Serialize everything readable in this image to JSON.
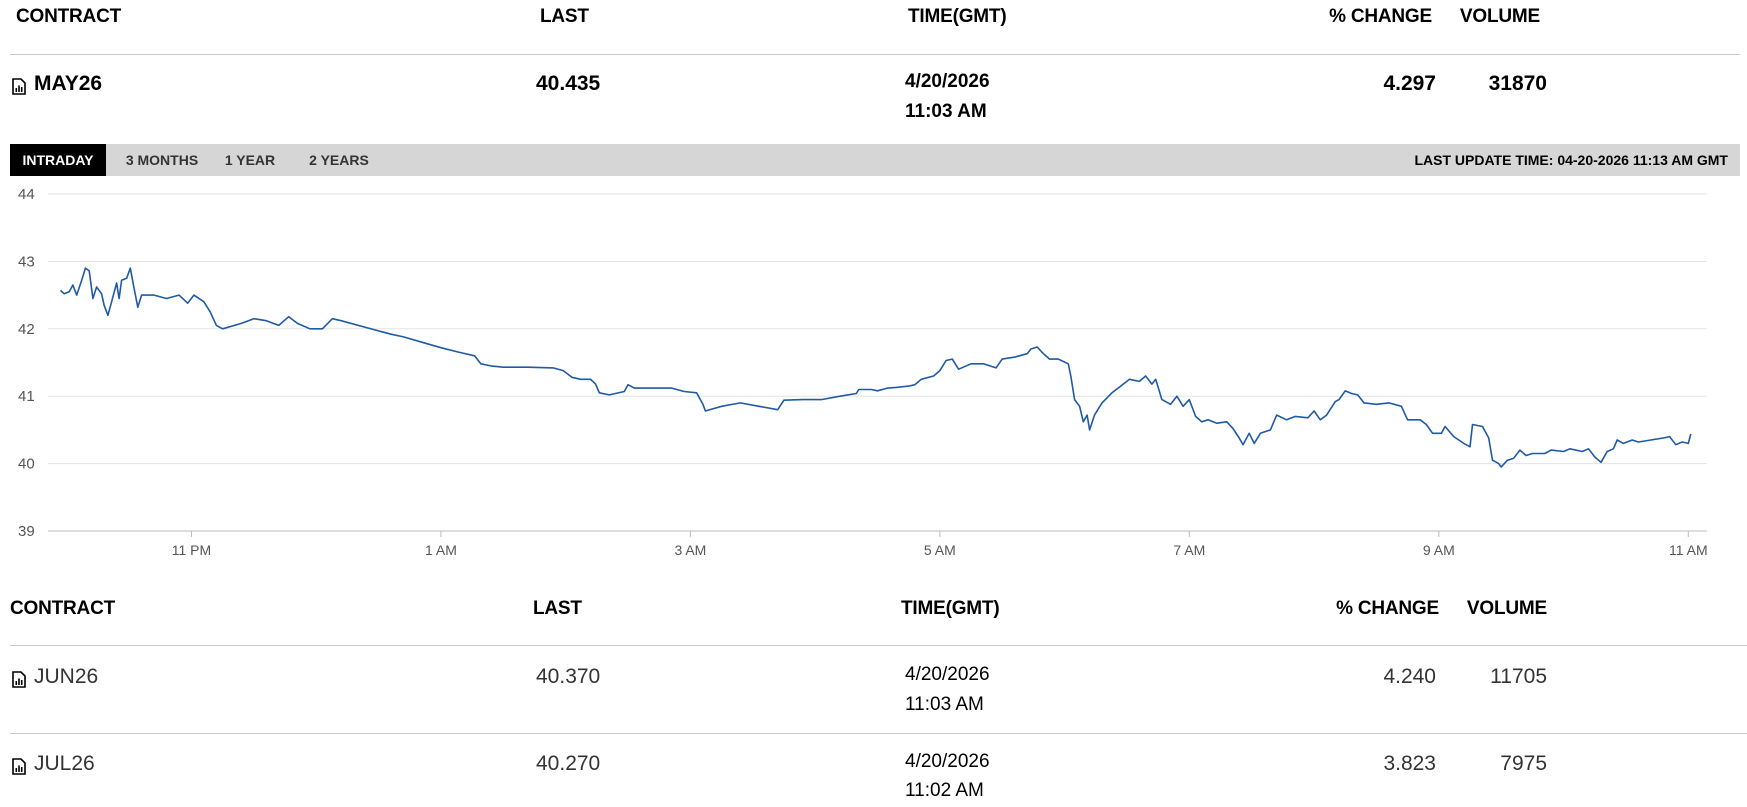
{
  "table_headers": {
    "contract": "CONTRACT",
    "last": "LAST",
    "time": "TIME(GMT)",
    "change": "% CHANGE",
    "volume": "VOLUME"
  },
  "main_contract": {
    "name": "MAY26",
    "last": "40.435",
    "date": "4/20/2026",
    "time": "11:03 AM",
    "change": "4.297",
    "volume": "31870"
  },
  "tabs": [
    {
      "label": "INTRADAY",
      "active": true
    },
    {
      "label": "3 MONTHS",
      "active": false
    },
    {
      "label": "1 YEAR",
      "active": false
    },
    {
      "label": "2 YEARS",
      "active": false
    }
  ],
  "last_update": "LAST UPDATE TIME: 04-20-2026 11:13 AM GMT",
  "other_contracts": [
    {
      "name": "JUN26",
      "last": "40.370",
      "date": "4/20/2026",
      "time": "11:03 AM",
      "change": "4.240",
      "volume": "11705"
    },
    {
      "name": "JUL26",
      "last": "40.270",
      "date": "4/20/2026",
      "time": "11:02 AM",
      "change": "3.823",
      "volume": "7975"
    }
  ],
  "icons": {
    "contract_row": "chart-document-icon"
  },
  "colors": {
    "line": "#1f5aa6",
    "tab_active_bg": "#000000",
    "tab_bar_bg": "#d6d6d6",
    "grid": "#e3e3e3"
  },
  "chart_data": {
    "type": "line",
    "title": "",
    "xlabel": "",
    "ylabel": "",
    "ylim": [
      39,
      44
    ],
    "y_ticks": [
      44,
      43,
      42,
      41,
      40,
      39
    ],
    "x_ticks": [
      "11 PM",
      "1 AM",
      "3 AM",
      "5 AM",
      "7 AM",
      "9 AM",
      "11 AM"
    ],
    "x_range_hours": [
      -1.15,
      12.15
    ],
    "grid": true,
    "series": [
      {
        "points": [
          [
            -1.05,
            42.57
          ],
          [
            -1.02,
            42.52
          ],
          [
            -0.98,
            42.55
          ],
          [
            -0.95,
            42.65
          ],
          [
            -0.92,
            42.5
          ],
          [
            -0.88,
            42.72
          ],
          [
            -0.85,
            42.9
          ],
          [
            -0.82,
            42.86
          ],
          [
            -0.79,
            42.45
          ],
          [
            -0.76,
            42.62
          ],
          [
            -0.72,
            42.52
          ],
          [
            -0.7,
            42.35
          ],
          [
            -0.67,
            42.2
          ],
          [
            -0.64,
            42.4
          ],
          [
            -0.6,
            42.68
          ],
          [
            -0.58,
            42.45
          ],
          [
            -0.56,
            42.72
          ],
          [
            -0.52,
            42.75
          ],
          [
            -0.49,
            42.9
          ],
          [
            -0.46,
            42.6
          ],
          [
            -0.43,
            42.32
          ],
          [
            -0.4,
            42.5
          ],
          [
            -0.3,
            42.5
          ],
          [
            -0.2,
            42.45
          ],
          [
            -0.1,
            42.5
          ],
          [
            -0.03,
            42.38
          ],
          [
            0.02,
            42.5
          ],
          [
            0.1,
            42.4
          ],
          [
            0.15,
            42.25
          ],
          [
            0.2,
            42.05
          ],
          [
            0.25,
            42.0
          ],
          [
            0.4,
            42.08
          ],
          [
            0.5,
            42.15
          ],
          [
            0.6,
            42.12
          ],
          [
            0.7,
            42.05
          ],
          [
            0.78,
            42.18
          ],
          [
            0.85,
            42.08
          ],
          [
            0.95,
            42.0
          ],
          [
            1.05,
            42.0
          ],
          [
            1.13,
            42.15
          ],
          [
            1.2,
            42.12
          ],
          [
            1.4,
            42.02
          ],
          [
            1.6,
            41.92
          ],
          [
            1.7,
            41.88
          ],
          [
            1.85,
            41.8
          ],
          [
            2.0,
            41.72
          ],
          [
            2.15,
            41.65
          ],
          [
            2.27,
            41.6
          ],
          [
            2.32,
            41.48
          ],
          [
            2.4,
            41.45
          ],
          [
            2.5,
            41.43
          ],
          [
            2.7,
            41.43
          ],
          [
            2.9,
            41.42
          ],
          [
            2.98,
            41.38
          ],
          [
            3.05,
            41.28
          ],
          [
            3.12,
            41.25
          ],
          [
            3.2,
            41.25
          ],
          [
            3.24,
            41.18
          ],
          [
            3.27,
            41.05
          ],
          [
            3.35,
            41.02
          ],
          [
            3.47,
            41.07
          ],
          [
            3.5,
            41.17
          ],
          [
            3.55,
            41.12
          ],
          [
            3.7,
            41.12
          ],
          [
            3.85,
            41.12
          ],
          [
            3.95,
            41.07
          ],
          [
            4.05,
            41.05
          ],
          [
            4.1,
            40.88
          ],
          [
            4.12,
            40.78
          ],
          [
            4.25,
            40.85
          ],
          [
            4.4,
            40.9
          ],
          [
            4.55,
            40.85
          ],
          [
            4.7,
            40.8
          ],
          [
            4.75,
            40.94
          ],
          [
            4.9,
            40.95
          ],
          [
            5.05,
            40.95
          ],
          [
            5.2,
            41.0
          ],
          [
            5.33,
            41.04
          ],
          [
            5.35,
            41.1
          ],
          [
            5.45,
            41.1
          ],
          [
            5.5,
            41.08
          ],
          [
            5.58,
            41.12
          ],
          [
            5.65,
            41.13
          ],
          [
            5.75,
            41.15
          ],
          [
            5.8,
            41.17
          ],
          [
            5.85,
            41.25
          ],
          [
            5.95,
            41.3
          ],
          [
            6.0,
            41.38
          ],
          [
            6.05,
            41.53
          ],
          [
            6.1,
            41.55
          ],
          [
            6.15,
            41.4
          ],
          [
            6.25,
            41.48
          ],
          [
            6.35,
            41.48
          ],
          [
            6.45,
            41.42
          ],
          [
            6.5,
            41.55
          ],
          [
            6.6,
            41.58
          ],
          [
            6.7,
            41.63
          ],
          [
            6.73,
            41.7
          ],
          [
            6.78,
            41.73
          ],
          [
            6.83,
            41.63
          ],
          [
            6.88,
            41.55
          ],
          [
            6.95,
            41.55
          ],
          [
            7.03,
            41.48
          ],
          [
            7.05,
            41.3
          ],
          [
            7.08,
            40.95
          ],
          [
            7.12,
            40.85
          ],
          [
            7.15,
            40.62
          ],
          [
            7.18,
            40.72
          ],
          [
            7.2,
            40.5
          ],
          [
            7.24,
            40.72
          ],
          [
            7.3,
            40.9
          ],
          [
            7.38,
            41.05
          ],
          [
            7.45,
            41.15
          ],
          [
            7.52,
            41.25
          ],
          [
            7.6,
            41.22
          ],
          [
            7.65,
            41.3
          ],
          [
            7.7,
            41.18
          ],
          [
            7.73,
            41.25
          ],
          [
            7.78,
            40.95
          ],
          [
            7.85,
            40.88
          ],
          [
            7.9,
            41.0
          ],
          [
            7.95,
            40.85
          ],
          [
            8.0,
            40.95
          ],
          [
            8.05,
            40.7
          ],
          [
            8.1,
            40.62
          ],
          [
            8.15,
            40.65
          ],
          [
            8.22,
            40.6
          ],
          [
            8.3,
            40.62
          ],
          [
            8.35,
            40.52
          ],
          [
            8.4,
            40.38
          ],
          [
            8.43,
            40.28
          ],
          [
            8.48,
            40.45
          ],
          [
            8.52,
            40.3
          ],
          [
            8.57,
            40.45
          ],
          [
            8.65,
            40.5
          ],
          [
            8.7,
            40.72
          ],
          [
            8.78,
            40.65
          ],
          [
            8.85,
            40.7
          ],
          [
            8.95,
            40.68
          ],
          [
            9.0,
            40.78
          ],
          [
            9.05,
            40.65
          ],
          [
            9.1,
            40.72
          ],
          [
            9.17,
            40.92
          ],
          [
            9.2,
            40.95
          ],
          [
            9.25,
            41.08
          ],
          [
            9.3,
            41.04
          ],
          [
            9.35,
            41.02
          ],
          [
            9.4,
            40.9
          ],
          [
            9.5,
            40.88
          ],
          [
            9.6,
            40.9
          ],
          [
            9.7,
            40.85
          ],
          [
            9.75,
            40.65
          ],
          [
            9.85,
            40.65
          ],
          [
            9.9,
            40.58
          ],
          [
            9.95,
            40.45
          ],
          [
            10.02,
            40.45
          ],
          [
            10.05,
            40.55
          ],
          [
            10.12,
            40.4
          ],
          [
            10.2,
            40.3
          ],
          [
            10.25,
            40.25
          ],
          [
            10.27,
            40.58
          ],
          [
            10.35,
            40.55
          ],
          [
            10.4,
            40.38
          ],
          [
            10.43,
            40.05
          ],
          [
            10.48,
            40.0
          ],
          [
            10.5,
            39.95
          ],
          [
            10.55,
            40.05
          ],
          [
            10.6,
            40.08
          ],
          [
            10.65,
            40.2
          ],
          [
            10.7,
            40.12
          ],
          [
            10.75,
            40.15
          ],
          [
            10.85,
            40.15
          ],
          [
            10.9,
            40.2
          ],
          [
            11.0,
            40.18
          ],
          [
            11.05,
            40.22
          ],
          [
            11.15,
            40.18
          ],
          [
            11.2,
            40.22
          ],
          [
            11.25,
            40.1
          ],
          [
            11.3,
            40.02
          ],
          [
            11.35,
            40.18
          ],
          [
            11.4,
            40.22
          ],
          [
            11.43,
            40.35
          ],
          [
            11.48,
            40.3
          ],
          [
            11.55,
            40.35
          ],
          [
            11.6,
            40.32
          ],
          [
            11.7,
            40.35
          ],
          [
            11.8,
            40.38
          ],
          [
            11.85,
            40.4
          ],
          [
            11.9,
            40.28
          ],
          [
            11.95,
            40.32
          ],
          [
            12.0,
            40.3
          ],
          [
            12.02,
            40.44
          ]
        ]
      }
    ]
  }
}
